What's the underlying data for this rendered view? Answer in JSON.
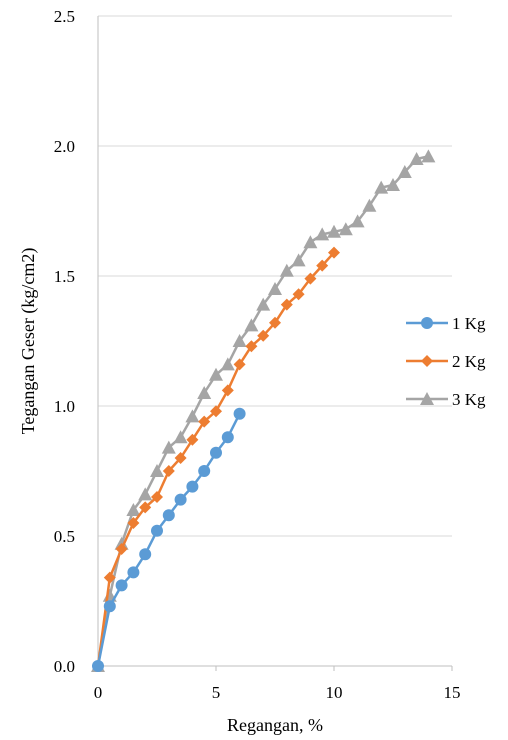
{
  "chart_data": {
    "type": "line",
    "xlabel": "Regangan, %",
    "ylabel": "Tegangan Geser (kg/cm2)",
    "xlim": [
      0,
      15
    ],
    "ylim": [
      0,
      2.5
    ],
    "x_ticks": [
      "0",
      "5",
      "10",
      "15"
    ],
    "y_ticks": [
      "0.0",
      "0.5",
      "1.0",
      "1.5",
      "2.0",
      "2.5"
    ],
    "legend_position": "right",
    "series": [
      {
        "name": "1 Kg",
        "color": "#5B9BD5",
        "marker": "circle",
        "x": [
          0,
          0.5,
          1,
          1.5,
          2,
          2.5,
          3,
          3.5,
          4,
          4.5,
          5,
          5.5,
          6
        ],
        "y": [
          0,
          0.23,
          0.31,
          0.36,
          0.43,
          0.52,
          0.58,
          0.64,
          0.69,
          0.75,
          0.82,
          0.88,
          0.97
        ]
      },
      {
        "name": "2 Kg",
        "color": "#ED7D31",
        "marker": "diamond",
        "x": [
          0,
          0.5,
          1,
          1.5,
          2,
          2.5,
          3,
          3.5,
          4,
          4.5,
          5,
          5.5,
          6,
          6.5,
          7,
          7.5,
          8,
          8.5,
          9,
          9.5,
          10
        ],
        "y": [
          0,
          0.34,
          0.45,
          0.55,
          0.61,
          0.65,
          0.75,
          0.8,
          0.87,
          0.94,
          0.98,
          1.06,
          1.16,
          1.23,
          1.27,
          1.32,
          1.39,
          1.43,
          1.49,
          1.54,
          1.59
        ]
      },
      {
        "name": "3 Kg",
        "color": "#A5A5A5",
        "marker": "triangle",
        "x": [
          0,
          0.5,
          1,
          1.5,
          2,
          2.5,
          3,
          3.5,
          4,
          4.5,
          5,
          5.5,
          6,
          6.5,
          7,
          7.5,
          8,
          8.5,
          9,
          9.5,
          10,
          10.5,
          11,
          11.5,
          12,
          12.5,
          13,
          13.5,
          14
        ],
        "y": [
          0,
          0.27,
          0.47,
          0.6,
          0.66,
          0.75,
          0.84,
          0.88,
          0.96,
          1.05,
          1.12,
          1.16,
          1.25,
          1.31,
          1.39,
          1.45,
          1.52,
          1.56,
          1.63,
          1.66,
          1.67,
          1.68,
          1.71,
          1.77,
          1.84,
          1.85,
          1.9,
          1.95,
          1.96
        ]
      }
    ]
  }
}
